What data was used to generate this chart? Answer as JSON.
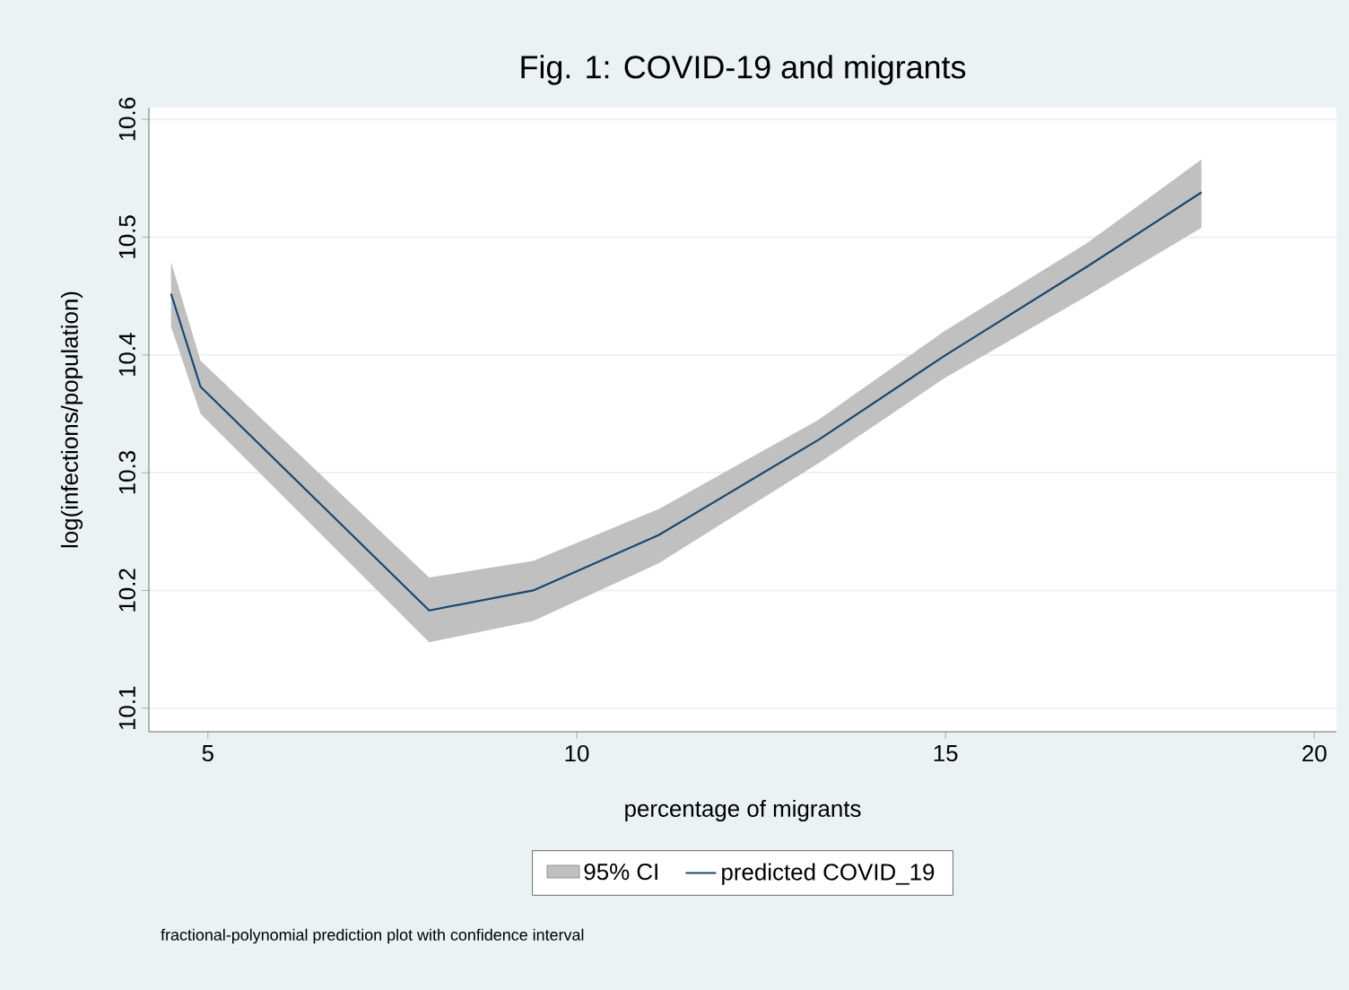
{
  "chart_data": {
    "type": "line",
    "title": "Fig. 1: COVID-19 and migrants",
    "xlabel": "percentage of migrants",
    "ylabel": "log(infections/population)",
    "annotations": [
      "fractional-polynomial prediction plot with confidence interval",
      "95% CI"
    ],
    "xlim": [
      4.2,
      20.3
    ],
    "ylim": [
      10.08,
      10.61
    ],
    "xticks": [
      5,
      10,
      15,
      20
    ],
    "yticks": [
      10.1,
      10.2,
      10.3,
      10.4,
      10.5,
      10.6
    ],
    "grid": "y",
    "legend": "bottom",
    "series": [
      {
        "name": "predicted COVID_19",
        "color": "#1a476f",
        "x": [
          4.5,
          4.9,
          8.0,
          9.41,
          11.11,
          13.28,
          14.98,
          16.92,
          18.47
        ],
        "values": [
          10.452,
          10.373,
          10.183,
          10.2,
          10.247,
          10.328,
          10.399,
          10.475,
          10.538
        ],
        "lower": [
          10.424,
          10.35,
          10.156,
          10.174,
          10.223,
          10.308,
          10.38,
          10.45,
          10.508
        ],
        "upper": [
          10.479,
          10.395,
          10.211,
          10.225,
          10.269,
          10.345,
          10.42,
          10.495,
          10.566
        ]
      }
    ]
  }
}
